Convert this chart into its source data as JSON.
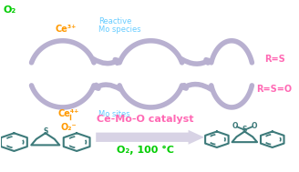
{
  "bg_color": "#ffffff",
  "fig_width": 3.28,
  "fig_height": 1.89,
  "dpi": 100,
  "arrow_color": "#b8b0d0",
  "struct_color": "#3d7a7a",
  "o2_color": "#00cc00",
  "ce_color": "#ff9900",
  "mo_color": "#66ccff",
  "rs_color": "#ff69b4",
  "cat_color": "#ff69b4",
  "o2_label": "O₂",
  "ce3_label": "Ce³⁺",
  "ce4_label": "Ce⁴⁺",
  "o2neg_label": "O₂⁻",
  "reactive_label": "Reactive\nMo species",
  "mo_sites_label": "Mo sites",
  "rs_label": "R=S",
  "rso_label": "R=S=O",
  "catalyst_label": "Ce-Mo-O catalyst",
  "o2_temp_label": "O₂, 100 °C"
}
